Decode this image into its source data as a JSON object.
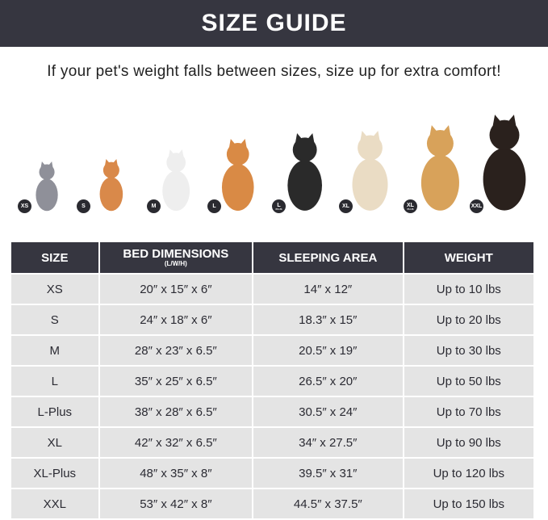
{
  "header": {
    "title": "SIZE GUIDE"
  },
  "subtitle": "If your pet's weight falls between sizes, size up for extra comfort!",
  "pets": [
    {
      "badge": "XS",
      "badge_sub": "",
      "animal": "cat",
      "color": "#8f9099"
    },
    {
      "badge": "S",
      "badge_sub": "",
      "animal": "pomeranian",
      "color": "#d9894a"
    },
    {
      "badge": "M",
      "badge_sub": "",
      "animal": "french-bulldog",
      "color": "#eeeeee"
    },
    {
      "badge": "L",
      "badge_sub": "",
      "animal": "shiba-inu",
      "color": "#d98a45"
    },
    {
      "badge": "L",
      "badge_sub": "PLUS",
      "animal": "border-collie",
      "color": "#2a2a2a"
    },
    {
      "badge": "XL",
      "badge_sub": "",
      "animal": "labrador",
      "color": "#eadcc4"
    },
    {
      "badge": "XL",
      "badge_sub": "PLUS",
      "animal": "golden-retriever",
      "color": "#d8a25a"
    },
    {
      "badge": "XXL",
      "badge_sub": "",
      "animal": "doberman",
      "color": "#2a211d"
    }
  ],
  "table": {
    "headers": [
      {
        "label": "SIZE",
        "sub": ""
      },
      {
        "label": "BED DIMENSIONS",
        "sub": "(L/W/H)"
      },
      {
        "label": "SLEEPING AREA",
        "sub": ""
      },
      {
        "label": "WEIGHT",
        "sub": ""
      }
    ],
    "rows": [
      [
        "XS",
        "20″ x 15″ x 6″",
        "14″ x 12″",
        "Up to 10 lbs"
      ],
      [
        "S",
        "24″ x 18″ x 6″",
        "18.3″ x 15″",
        "Up to 20 lbs"
      ],
      [
        "M",
        "28″ x 23″ x 6.5″",
        "20.5″ x 19″",
        "Up to 30 lbs"
      ],
      [
        "L",
        "35″ x 25″ x 6.5″",
        "26.5″ x 20″",
        "Up to 50 lbs"
      ],
      [
        "L-Plus",
        "38″ x 28″ x 6.5″",
        "30.5″ x 24″",
        "Up to 70 lbs"
      ],
      [
        "XL",
        "42″ x 32″ x 6.5″",
        "34″ x 27.5″",
        "Up to 90 lbs"
      ],
      [
        "XL-Plus",
        "48″ x 35″ x 8″",
        "39.5″ x 31″",
        "Up to 120 lbs"
      ],
      [
        "XXL",
        "53″ x 42″ x 8″",
        "44.5″ x 37.5″",
        "Up to 150 lbs"
      ]
    ]
  }
}
